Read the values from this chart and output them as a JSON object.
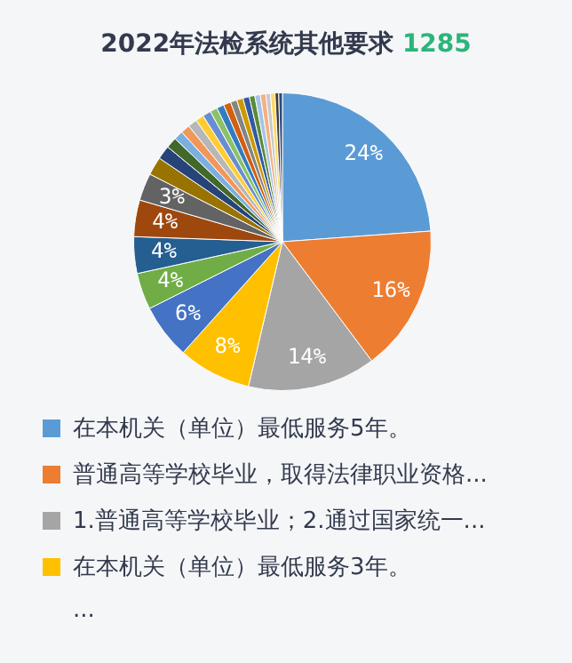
{
  "chart_data": {
    "type": "pie",
    "title": "2022年法检系统其他要求 1285",
    "categories": [
      "在本机关（单位）最低服务5年。",
      "普通高等学校毕业，取得法律职业资格...",
      "1.普通高等学校毕业；2.通过国家统一...",
      "在本机关（单位）最低服务3年。",
      null,
      null,
      null,
      null,
      null,
      null,
      null,
      null,
      null,
      null,
      null,
      null,
      null,
      null,
      null,
      null,
      null,
      null,
      null,
      null,
      null,
      null,
      null,
      null,
      null,
      null
    ],
    "values": [
      24,
      16,
      14,
      8,
      6,
      4,
      4,
      4,
      3,
      2,
      1.5,
      1.2,
      1,
      1,
      1,
      0.9,
      0.9,
      0.8,
      0.8,
      0.8,
      0.7,
      0.7,
      0.7,
      0.6,
      0.6,
      0.6,
      0.5,
      0.5,
      0.4,
      0.4
    ],
    "value_labels": [
      "24%",
      "16%",
      "14%",
      "8%",
      "6%",
      "4%",
      "4%",
      "4%",
      "3%",
      null,
      null,
      null,
      null,
      null,
      null,
      null,
      null,
      null,
      null,
      null,
      null,
      null,
      null,
      null,
      null,
      null,
      null,
      null,
      null,
      null
    ],
    "colors": [
      "#5b9bd5",
      "#ed7d31",
      "#a5a5a5",
      "#ffc000",
      "#4472c4",
      "#70ad47",
      "#255e91",
      "#9e480e",
      "#636363",
      "#997300",
      "#264478",
      "#43682b",
      "#7cafdd",
      "#f1975a",
      "#b7b7b7",
      "#ffcd33",
      "#698ed0",
      "#8cc168",
      "#327dc2",
      "#d26012",
      "#848484",
      "#cc9a00",
      "#335aa1",
      "#5a8a39",
      "#a3c4e6",
      "#f4b183",
      "#c9c9c9",
      "#ffd966",
      "#3c3c3c",
      "#2e4b7a"
    ],
    "legend": "bottom",
    "annotations": [
      "..."
    ]
  }
}
